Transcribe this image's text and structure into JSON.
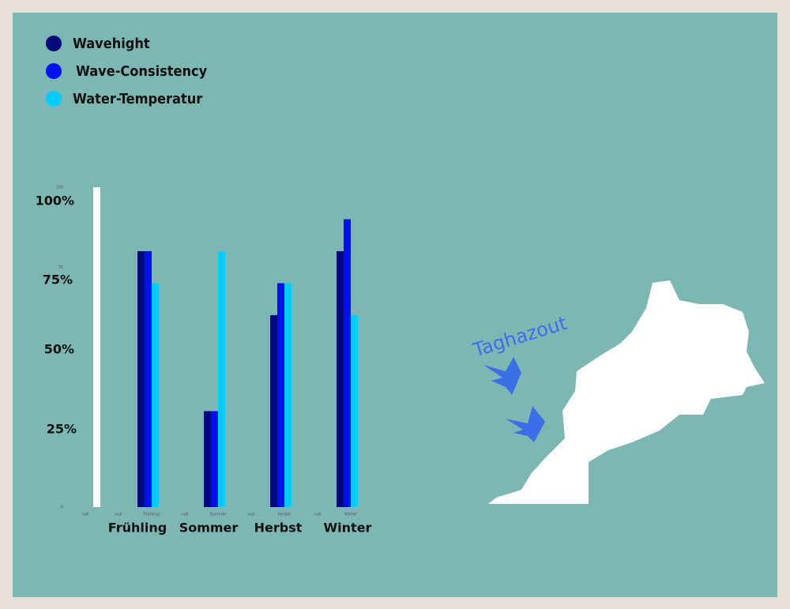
{
  "chart_data": {
    "type": "bar",
    "categories": [
      "null",
      "null",
      "Frühling",
      "null",
      "Sommer",
      "null",
      "Herbst",
      "null",
      "Winter"
    ],
    "series": [
      {
        "name": "Wavehight",
        "color": "#000a7a",
        "values": [
          null,
          null,
          80,
          null,
          30,
          null,
          60,
          null,
          80
        ]
      },
      {
        "name": "Wave-Consistency",
        "color": "#0010f0",
        "values": [
          null,
          null,
          80,
          null,
          30,
          null,
          70,
          null,
          90
        ]
      },
      {
        "name": "Water-Temperatur",
        "color": "#00ccff",
        "values": [
          null,
          null,
          70,
          null,
          80,
          null,
          70,
          null,
          60
        ]
      },
      {
        "color": "#ffffff",
        "values": [
          100,
          null,
          null,
          null,
          null,
          null,
          null,
          null,
          null
        ]
      }
    ],
    "ylim": [
      0,
      100
    ],
    "yticks": [
      0,
      75,
      100
    ],
    "season_labels": [
      "Frühling",
      "Sommer",
      "Herbst",
      "Winter"
    ],
    "percent_labels": [
      "100%",
      "75%",
      "50%",
      "25%"
    ]
  },
  "map": {
    "label": "Taghazout"
  }
}
